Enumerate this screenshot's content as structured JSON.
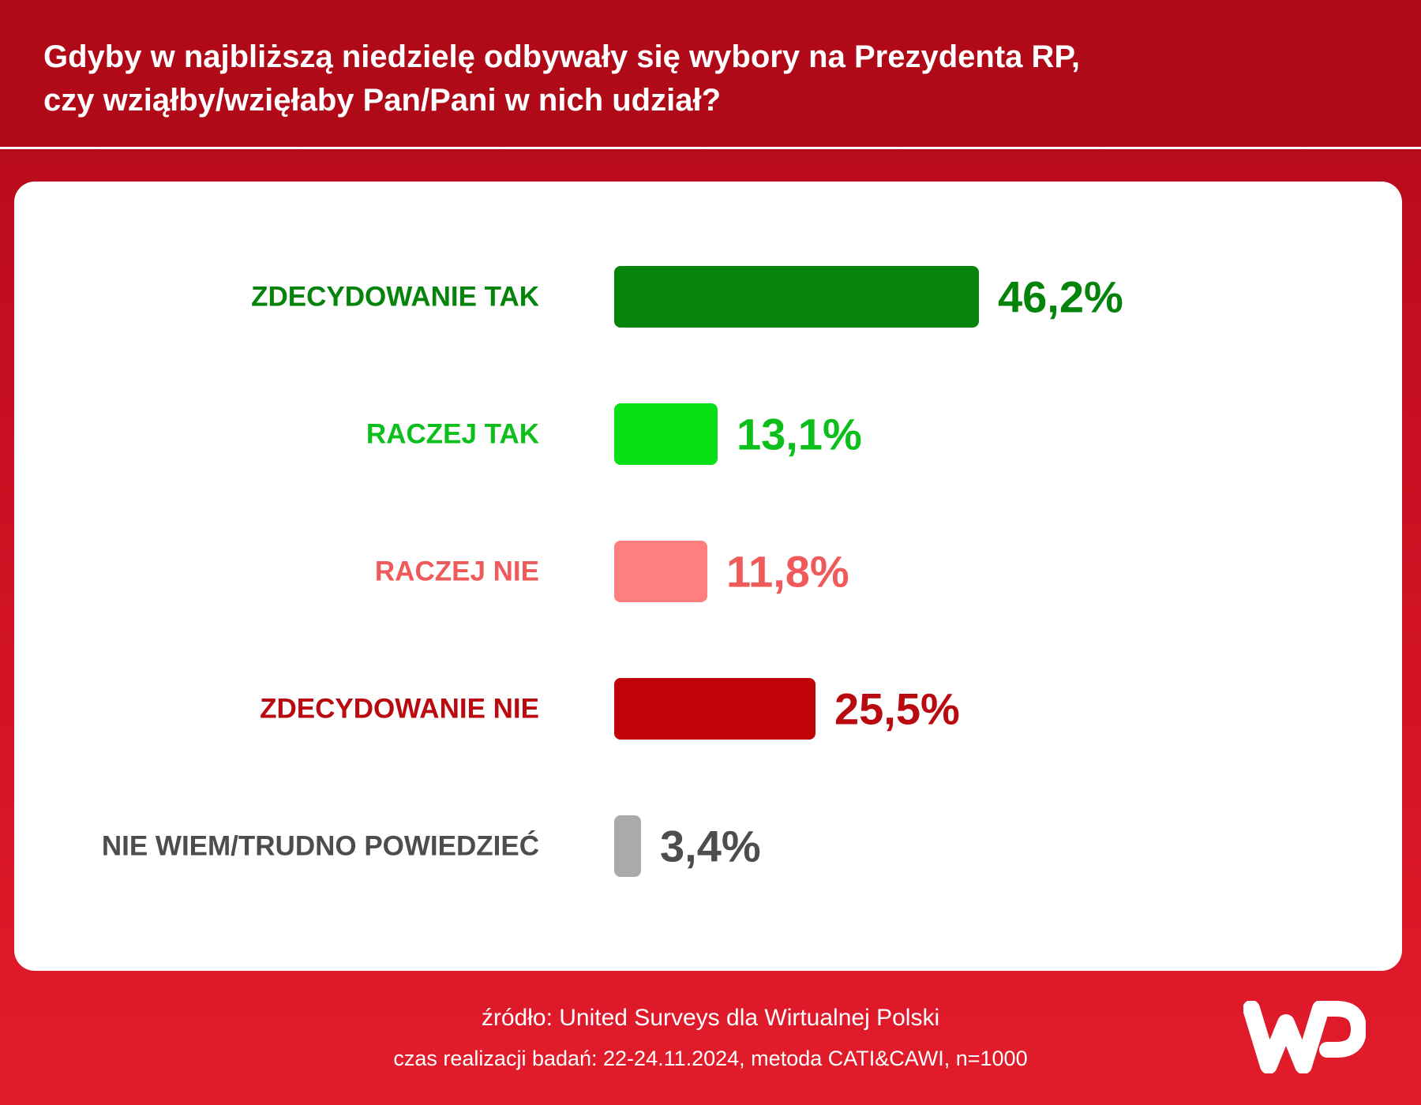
{
  "header": {
    "title_line1": "Gdyby w najbliższą niedzielę odbywały się wybory na Prezydenta RP,",
    "title_line2": "czy wziąłby/wzięłaby Pan/Pani w nich udział?"
  },
  "chart_data": {
    "type": "bar",
    "orientation": "horizontal",
    "categories": [
      "ZDECYDOWANIE TAK",
      "RACZEJ TAK",
      "RACZEJ NIE",
      "ZDECYDOWANIE NIE",
      "NIE WIEM/TRUDNO POWIEDZIEĆ"
    ],
    "values": [
      46.2,
      13.1,
      11.8,
      25.5,
      3.4
    ],
    "value_labels": [
      "46,2%",
      "13,1%",
      "11,8%",
      "25,5%",
      "3,4%"
    ],
    "colors": [
      "#05830a",
      "#08e015",
      "#ff7f7f",
      "#c00306",
      "#aaaaaa"
    ],
    "label_colors": [
      "#05830a",
      "#0cbf1a",
      "#ef5a5a",
      "#b80a0f",
      "#4d4d4d"
    ],
    "xlim": [
      0,
      100
    ],
    "grid": false,
    "legend": "none"
  },
  "footer": {
    "source": "źródło: United Surveys dla Wirtualnej Polski",
    "meta": "czas realizacji badań: 22-24.11.2024, metoda CATI&CAWI, n=1000"
  },
  "logo": {
    "icon": "wp-logo-icon",
    "color": "#ffffff"
  }
}
